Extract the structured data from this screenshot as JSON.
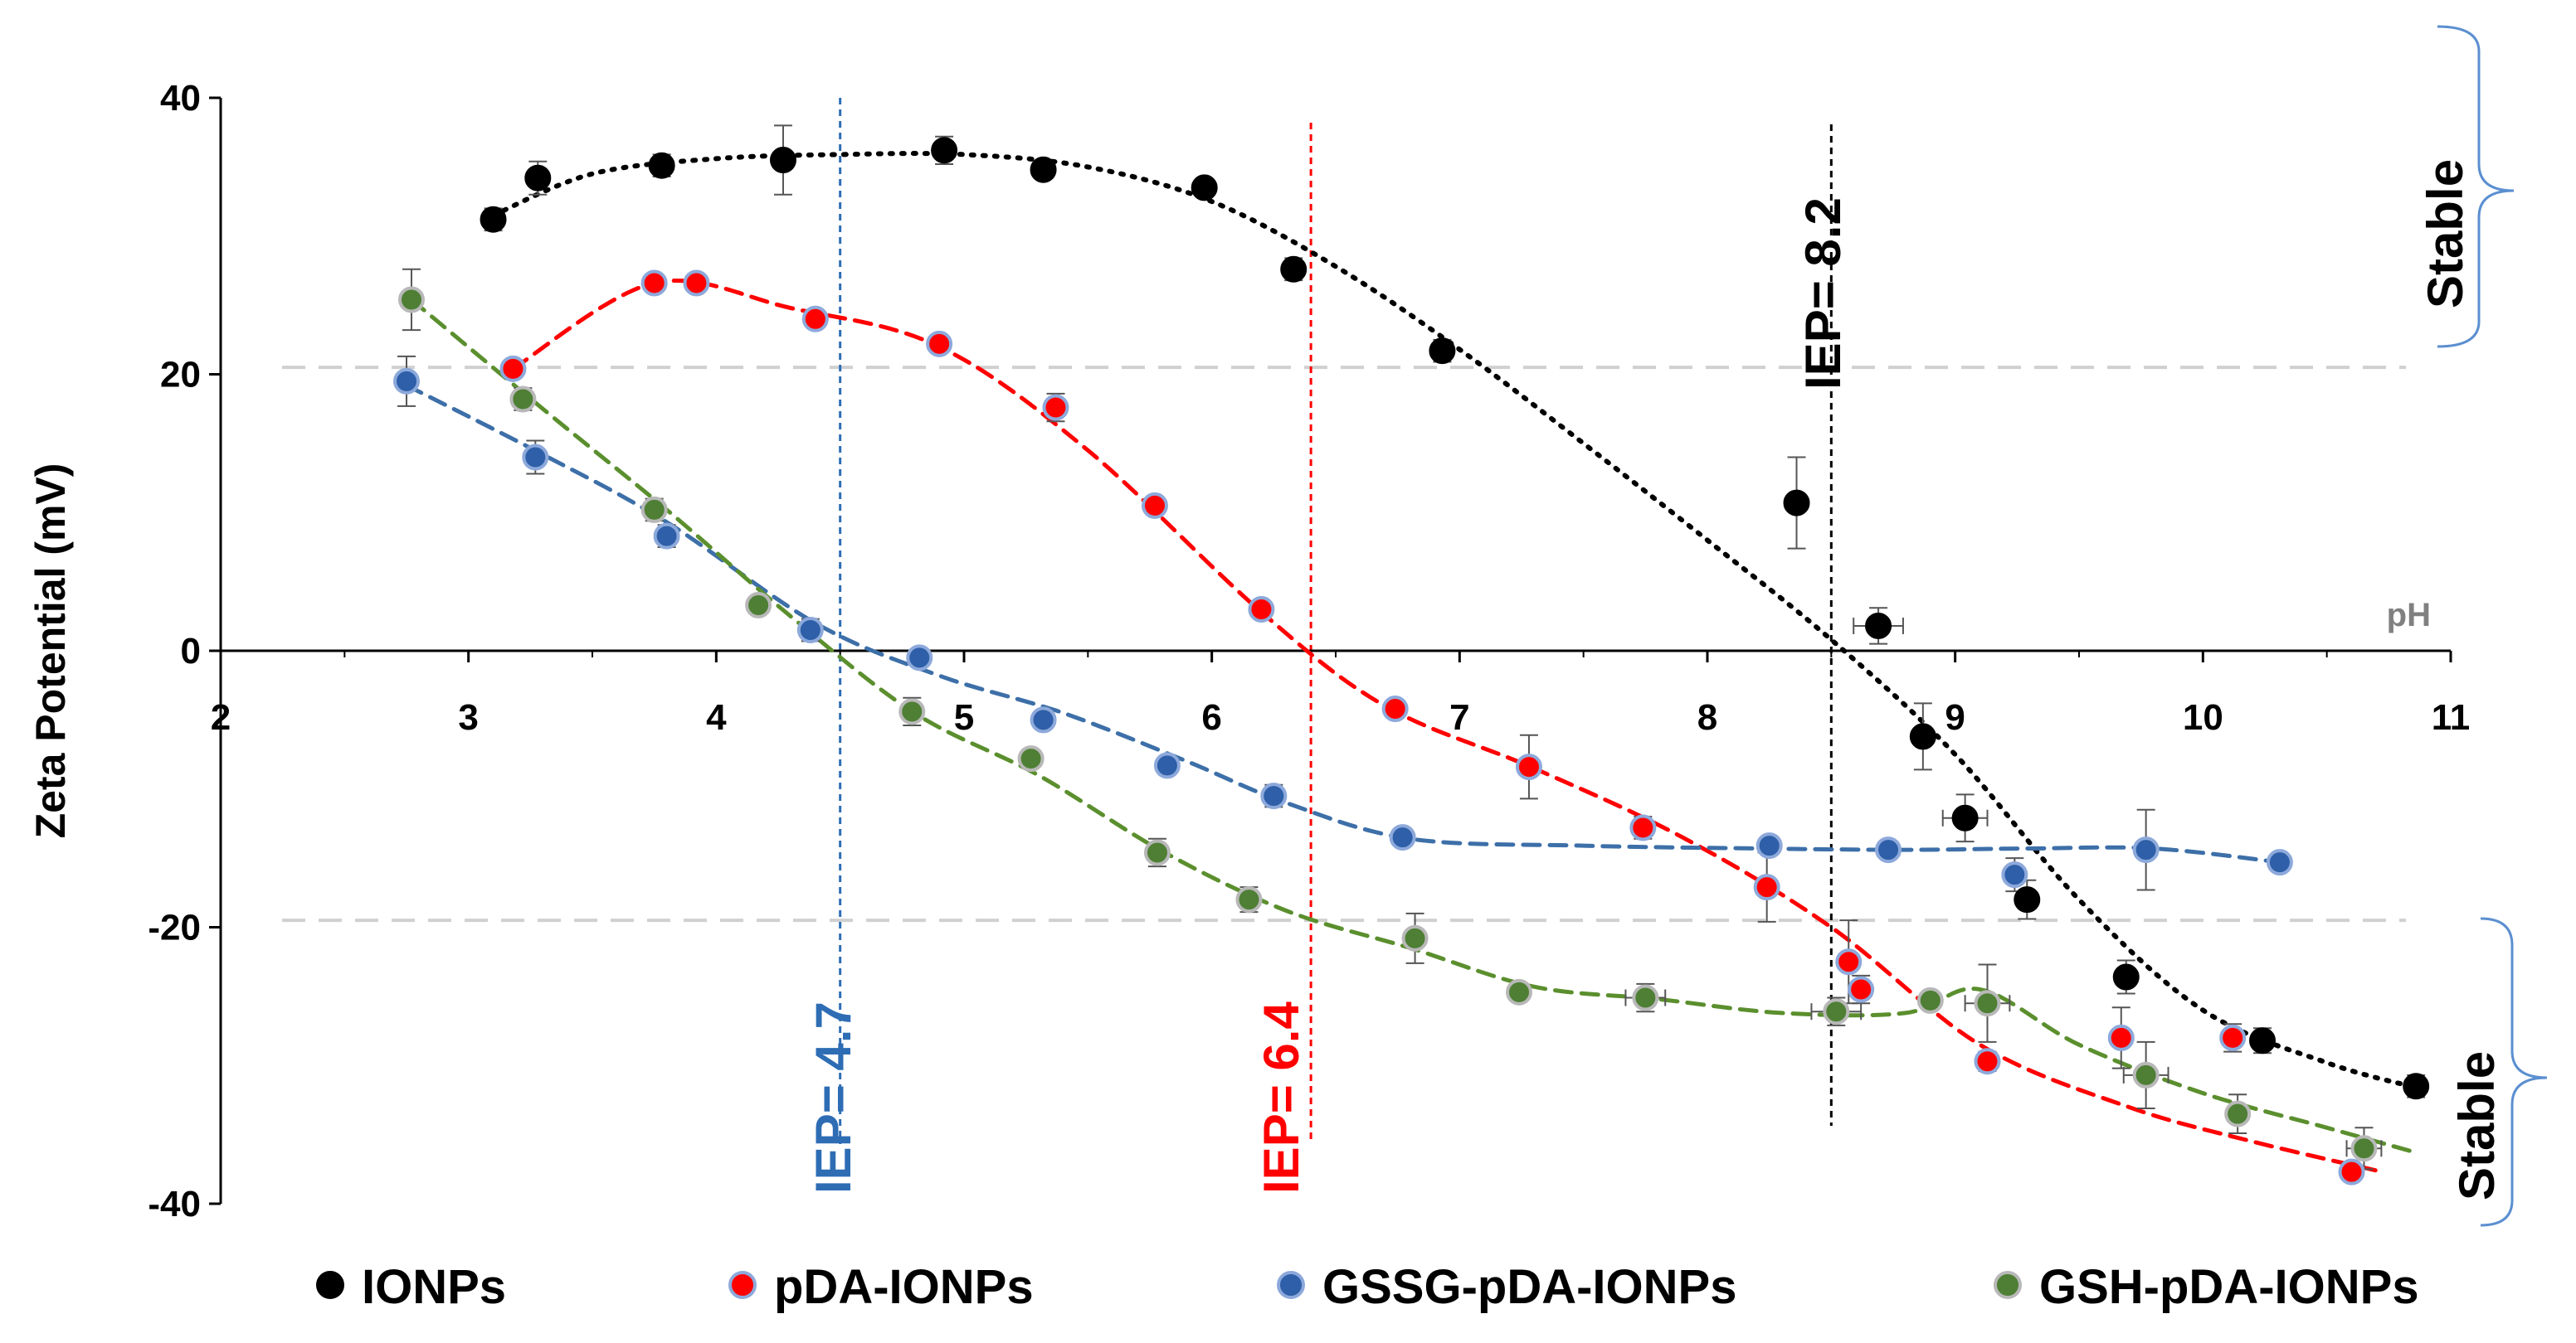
{
  "chart_data": {
    "type": "scatter",
    "ylabel": "Zeta Potential (mV)",
    "xlabel": "pH",
    "xlim": [
      2,
      11
    ],
    "ylim": [
      -40,
      40
    ],
    "x_ticks": [
      2,
      3,
      4,
      5,
      6,
      7,
      8,
      9,
      10,
      11
    ],
    "y_ticks": [
      -40,
      -20,
      0,
      20,
      40
    ],
    "x_tick_labels": [
      "2",
      "3",
      "4",
      "5",
      "6",
      "7",
      "8",
      "9",
      "10",
      "11"
    ],
    "y_tick_labels": [
      "-40",
      "-20",
      "0",
      "20",
      "40"
    ],
    "stability_thresholds": [
      20.5,
      -19.5
    ],
    "stable_labels": [
      "Stable",
      "Stable"
    ],
    "iep_markers": [
      {
        "label": "IEP= 4.7",
        "x": 4.5,
        "color": "#2E6DB4"
      },
      {
        "label": "IEP= 6.4",
        "x": 6.4,
        "color": "#FF0000"
      },
      {
        "label": "IEP= 8.2",
        "x": 8.5,
        "color": "#000000"
      }
    ],
    "series": [
      {
        "name": "IONPs",
        "color": "#000000",
        "edge": "#000000",
        "line_style": "dotted",
        "x": [
          3.1,
          3.28,
          3.78,
          4.27,
          4.92,
          5.32,
          5.97,
          6.33,
          6.93,
          8.36,
          8.69,
          8.87,
          9.04,
          9.29,
          9.69,
          10.24,
          10.86
        ],
        "y": [
          31.2,
          34.2,
          35.1,
          35.5,
          36.2,
          34.8,
          33.5,
          27.6,
          21.7,
          10.7,
          1.8,
          -6.2,
          -12.1,
          -18.0,
          -23.6,
          -28.2,
          -31.5
        ],
        "yerr": [
          0.8,
          1.2,
          0.8,
          2.5,
          1.0,
          0.6,
          0.6,
          0.8,
          0.8,
          3.3,
          1.3,
          2.4,
          1.7,
          1.4,
          1.2,
          0.9,
          0.8
        ],
        "xerr": [
          0,
          0,
          0,
          0,
          0,
          0,
          0,
          0,
          0,
          0,
          0.1,
          0,
          0.09,
          0,
          0,
          0,
          0
        ],
        "fit_x": [
          3.1,
          3.5,
          4.0,
          4.5,
          5.0,
          5.5,
          6.0,
          6.5,
          7.0,
          7.5,
          8.0,
          8.5,
          9.0,
          9.5,
          10.0,
          10.5,
          10.86
        ],
        "fit_y": [
          31.5,
          34.5,
          35.6,
          35.9,
          35.9,
          35.0,
          32.5,
          27.8,
          21.8,
          15.0,
          8.0,
          0.8,
          -7.5,
          -18.0,
          -26.0,
          -29.8,
          -31.6
        ]
      },
      {
        "name": "pDA-IONPs",
        "color": "#FF0000",
        "edge": "#8DA9DB",
        "line_style": "dashed",
        "x": [
          3.18,
          3.75,
          3.92,
          4.4,
          4.9,
          5.37,
          5.77,
          6.2,
          6.74,
          7.28,
          7.74,
          8.24,
          8.57,
          8.62,
          9.13,
          9.67,
          10.12,
          10.6
        ],
        "y": [
          20.4,
          26.6,
          26.6,
          24.0,
          22.2,
          17.6,
          10.5,
          3.0,
          -4.2,
          -8.4,
          -12.8,
          -17.1,
          -22.5,
          -24.5,
          -29.7,
          -28.0,
          -28.0,
          -37.7
        ],
        "yerr": [
          0.5,
          0.3,
          0.3,
          0.4,
          0.5,
          1.0,
          0.4,
          0.4,
          0.5,
          2.3,
          0.8,
          2.5,
          3.0,
          1.0,
          0.7,
          2.2,
          1.0,
          0.5
        ],
        "xerr": [
          0,
          0,
          0,
          0,
          0,
          0,
          0,
          0,
          0,
          0,
          0,
          0,
          0,
          0,
          0,
          0,
          0,
          0
        ],
        "fit_x": [
          3.18,
          3.75,
          4.3,
          4.9,
          5.5,
          6.2,
          6.7,
          7.3,
          7.9,
          8.5,
          9.1,
          9.7,
          10.2,
          10.7
        ],
        "fit_y": [
          20.4,
          26.6,
          24.8,
          22.0,
          14.5,
          2.8,
          -4.0,
          -8.5,
          -13.5,
          -20.0,
          -28.5,
          -33.0,
          -35.5,
          -37.6
        ]
      },
      {
        "name": "GSSG-pDA-IONPs",
        "color": "#2E5FA8",
        "edge": "#8DA9DB",
        "line_style": "dashed",
        "x": [
          2.75,
          3.27,
          3.8,
          4.38,
          4.82,
          5.32,
          5.82,
          6.25,
          6.77,
          8.25,
          8.73,
          9.24,
          9.77,
          10.31
        ],
        "y": [
          19.5,
          14.0,
          8.3,
          1.5,
          -0.5,
          -5.0,
          -8.3,
          -10.5,
          -13.5,
          -14.1,
          -14.4,
          -16.2,
          -14.4,
          -15.3
        ],
        "yerr": [
          1.8,
          1.2,
          0.8,
          0.8,
          0.3,
          0.3,
          0.3,
          0.8,
          0.4,
          0.3,
          0.3,
          1.2,
          2.9,
          0.3
        ],
        "xerr": [
          0,
          0,
          0,
          0,
          0,
          0,
          0,
          0,
          0,
          0,
          0,
          0,
          0,
          0
        ],
        "fit_x": [
          2.75,
          3.3,
          3.8,
          4.4,
          4.9,
          5.4,
          5.9,
          6.3,
          6.8,
          7.5,
          8.2,
          8.8,
          9.3,
          9.8,
          10.31
        ],
        "fit_y": [
          19.2,
          14.2,
          9.3,
          2.0,
          -1.8,
          -4.5,
          -8.0,
          -11.0,
          -13.6,
          -14.1,
          -14.3,
          -14.4,
          -14.3,
          -14.3,
          -15.3
        ]
      },
      {
        "name": "GSH-pDA-IONPs",
        "color": "#4E7F34",
        "edge": "#B8B8B8",
        "line_style": "dashed",
        "x": [
          2.77,
          3.22,
          3.75,
          4.17,
          4.79,
          5.27,
          5.78,
          6.15,
          6.82,
          7.24,
          7.75,
          8.52,
          8.9,
          9.13,
          9.77,
          10.14,
          10.65
        ],
        "y": [
          25.4,
          18.2,
          10.2,
          3.3,
          -4.4,
          -7.8,
          -14.6,
          -18.0,
          -20.8,
          -24.7,
          -25.1,
          -26.1,
          -25.3,
          -25.5,
          -30.7,
          -33.5,
          -36.0
        ],
        "yerr": [
          2.2,
          0.8,
          0.8,
          0.4,
          1.0,
          0.6,
          1.0,
          0.9,
          1.8,
          0.5,
          1.0,
          1.0,
          0.6,
          2.8,
          2.4,
          1.4,
          1.5
        ],
        "xerr": [
          0,
          0,
          0,
          0,
          0,
          0,
          0,
          0,
          0,
          0,
          0.08,
          0.1,
          0,
          0.09,
          0.09,
          0,
          0.07
        ],
        "fit_x": [
          2.77,
          3.3,
          3.8,
          4.3,
          4.8,
          5.3,
          5.8,
          6.3,
          6.8,
          7.3,
          7.8,
          8.3,
          8.8,
          9.1,
          9.5,
          10.0,
          10.5,
          10.86
        ],
        "fit_y": [
          25.4,
          17.5,
          10.2,
          2.5,
          -4.5,
          -9.0,
          -14.5,
          -18.8,
          -21.5,
          -24.3,
          -25.2,
          -26.2,
          -26.2,
          -24.5,
          -28.5,
          -32.0,
          -34.5,
          -36.3
        ]
      }
    ]
  }
}
